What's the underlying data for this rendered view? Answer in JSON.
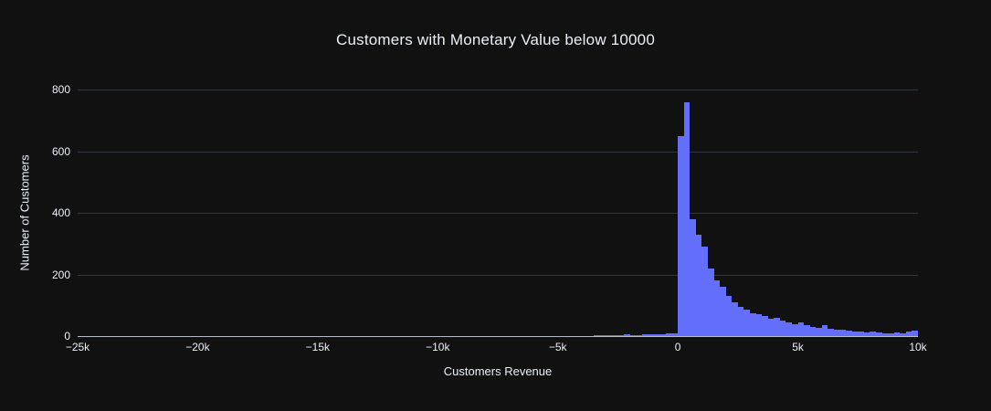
{
  "colors": {
    "background": "#111111",
    "bar": "#636efa",
    "grid": "#30353e",
    "axis_line": "#b5bac4",
    "text": "#ebf0f8"
  },
  "chart_data": {
    "type": "bar",
    "subtype": "histogram",
    "title": "Customers with Monetary Value below 10000",
    "xlabel": "Customers Revenue",
    "ylabel": "Number of Customers",
    "xlim": [
      -25000,
      10000
    ],
    "ylim": [
      0,
      800
    ],
    "grid": "horizontal",
    "legend": "none",
    "y_ticks": [
      {
        "value": 0,
        "label": "0"
      },
      {
        "value": 200,
        "label": "200"
      },
      {
        "value": 400,
        "label": "400"
      },
      {
        "value": 600,
        "label": "600"
      },
      {
        "value": 800,
        "label": "800"
      }
    ],
    "x_ticks": [
      {
        "value": -25000,
        "label": "−25k"
      },
      {
        "value": -20000,
        "label": "−20k"
      },
      {
        "value": -15000,
        "label": "−15k"
      },
      {
        "value": -10000,
        "label": "−10k"
      },
      {
        "value": -5000,
        "label": "−5k"
      },
      {
        "value": 0,
        "label": "0"
      },
      {
        "value": 5000,
        "label": "5k"
      },
      {
        "value": 10000,
        "label": "10k"
      }
    ],
    "bin_start": -3500,
    "bin_width": 250,
    "counts": [
      2,
      3,
      2,
      4,
      3,
      5,
      4,
      3,
      6,
      5,
      7,
      6,
      8,
      9,
      650,
      760,
      380,
      330,
      290,
      220,
      180,
      160,
      130,
      110,
      95,
      85,
      75,
      70,
      65,
      55,
      60,
      50,
      45,
      40,
      45,
      35,
      30,
      28,
      35,
      25,
      22,
      20,
      18,
      15,
      14,
      13,
      15,
      12,
      10,
      10,
      12,
      10,
      14,
      18
    ]
  }
}
